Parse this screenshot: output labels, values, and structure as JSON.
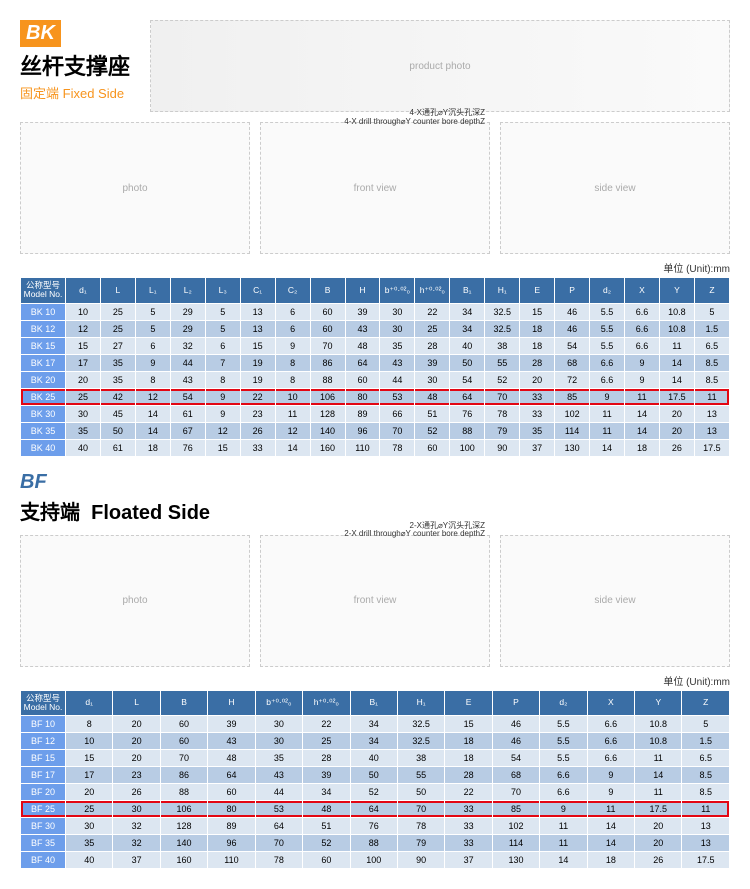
{
  "bk": {
    "badge": "BK",
    "badge_bg": "#f7941d",
    "title_cn": "丝杆支撑座",
    "subtitle_cn": "固定端",
    "subtitle_en": "Fixed Side",
    "diag_note_cn": "4-X通孔⌀Y沉头孔深Z",
    "diag_note_en": "4-X drill through⌀Y counter bore depthZ",
    "unit_label": "单位 (Unit):mm",
    "columns": [
      "公称型号\nModel No.",
      "d₁",
      "L",
      "L₁",
      "L₂",
      "L₃",
      "C₁",
      "C₂",
      "B",
      "H",
      "b⁺⁰·⁰²₀",
      "h⁺⁰·⁰²₀",
      "B₁",
      "H₁",
      "E",
      "P",
      "d₂",
      "X",
      "Y",
      "Z"
    ],
    "rows": [
      [
        "BK 10",
        "10",
        "25",
        "5",
        "29",
        "5",
        "13",
        "6",
        "60",
        "39",
        "30",
        "22",
        "34",
        "32.5",
        "15",
        "46",
        "5.5",
        "6.6",
        "10.8",
        "5"
      ],
      [
        "BK 12",
        "12",
        "25",
        "5",
        "29",
        "5",
        "13",
        "6",
        "60",
        "43",
        "30",
        "25",
        "34",
        "32.5",
        "18",
        "46",
        "5.5",
        "6.6",
        "10.8",
        "1.5"
      ],
      [
        "BK 15",
        "15",
        "27",
        "6",
        "32",
        "6",
        "15",
        "9",
        "70",
        "48",
        "35",
        "28",
        "40",
        "38",
        "18",
        "54",
        "5.5",
        "6.6",
        "11",
        "6.5"
      ],
      [
        "BK 17",
        "17",
        "35",
        "9",
        "44",
        "7",
        "19",
        "8",
        "86",
        "64",
        "43",
        "39",
        "50",
        "55",
        "28",
        "68",
        "6.6",
        "9",
        "14",
        "8.5"
      ],
      [
        "BK 20",
        "20",
        "35",
        "8",
        "43",
        "8",
        "19",
        "8",
        "88",
        "60",
        "44",
        "30",
        "54",
        "52",
        "20",
        "72",
        "6.6",
        "9",
        "14",
        "8.5"
      ],
      [
        "BK 25",
        "25",
        "42",
        "12",
        "54",
        "9",
        "22",
        "10",
        "106",
        "80",
        "53",
        "48",
        "64",
        "70",
        "33",
        "85",
        "9",
        "11",
        "17.5",
        "11"
      ],
      [
        "BK 30",
        "30",
        "45",
        "14",
        "61",
        "9",
        "23",
        "11",
        "128",
        "89",
        "66",
        "51",
        "76",
        "78",
        "33",
        "102",
        "11",
        "14",
        "20",
        "13"
      ],
      [
        "BK 35",
        "35",
        "50",
        "14",
        "67",
        "12",
        "26",
        "12",
        "140",
        "96",
        "70",
        "52",
        "88",
        "79",
        "35",
        "114",
        "11",
        "14",
        "20",
        "13"
      ],
      [
        "BK 40",
        "40",
        "61",
        "18",
        "76",
        "15",
        "33",
        "14",
        "160",
        "110",
        "78",
        "60",
        "100",
        "90",
        "37",
        "130",
        "14",
        "18",
        "26",
        "17.5"
      ]
    ],
    "highlight_index": 5
  },
  "bf": {
    "badge": "BF",
    "badge_color": "#3a6ea5",
    "title_cn": "支持端",
    "title_en": "Floated Side",
    "diag_note_cn": "2-X通孔⌀Y沉头孔深Z",
    "diag_note_en": "2-X drill through⌀Y counter bore depthZ",
    "unit_label": "单位 (Unit):mm",
    "columns": [
      "公称型号\nModel No.",
      "d₁",
      "L",
      "B",
      "H",
      "b⁺⁰·⁰²₀",
      "h⁺⁰·⁰²₀",
      "B₁",
      "H₁",
      "E",
      "P",
      "d₂",
      "X",
      "Y",
      "Z"
    ],
    "rows": [
      [
        "BF 10",
        "8",
        "20",
        "60",
        "39",
        "30",
        "22",
        "34",
        "32.5",
        "15",
        "46",
        "5.5",
        "6.6",
        "10.8",
        "5"
      ],
      [
        "BF 12",
        "10",
        "20",
        "60",
        "43",
        "30",
        "25",
        "34",
        "32.5",
        "18",
        "46",
        "5.5",
        "6.6",
        "10.8",
        "1.5"
      ],
      [
        "BF 15",
        "15",
        "20",
        "70",
        "48",
        "35",
        "28",
        "40",
        "38",
        "18",
        "54",
        "5.5",
        "6.6",
        "11",
        "6.5"
      ],
      [
        "BF 17",
        "17",
        "23",
        "86",
        "64",
        "43",
        "39",
        "50",
        "55",
        "28",
        "68",
        "6.6",
        "9",
        "14",
        "8.5"
      ],
      [
        "BF 20",
        "20",
        "26",
        "88",
        "60",
        "44",
        "34",
        "52",
        "50",
        "22",
        "70",
        "6.6",
        "9",
        "11",
        "8.5"
      ],
      [
        "BF 25",
        "25",
        "30",
        "106",
        "80",
        "53",
        "48",
        "64",
        "70",
        "33",
        "85",
        "9",
        "11",
        "17.5",
        "11"
      ],
      [
        "BF 30",
        "30",
        "32",
        "128",
        "89",
        "64",
        "51",
        "76",
        "78",
        "33",
        "102",
        "11",
        "14",
        "20",
        "13"
      ],
      [
        "BF 35",
        "35",
        "32",
        "140",
        "96",
        "70",
        "52",
        "88",
        "79",
        "33",
        "114",
        "11",
        "14",
        "20",
        "13"
      ],
      [
        "BF 40",
        "40",
        "37",
        "160",
        "110",
        "78",
        "60",
        "100",
        "90",
        "37",
        "130",
        "14",
        "18",
        "26",
        "17.5"
      ]
    ],
    "highlight_index": 5
  }
}
